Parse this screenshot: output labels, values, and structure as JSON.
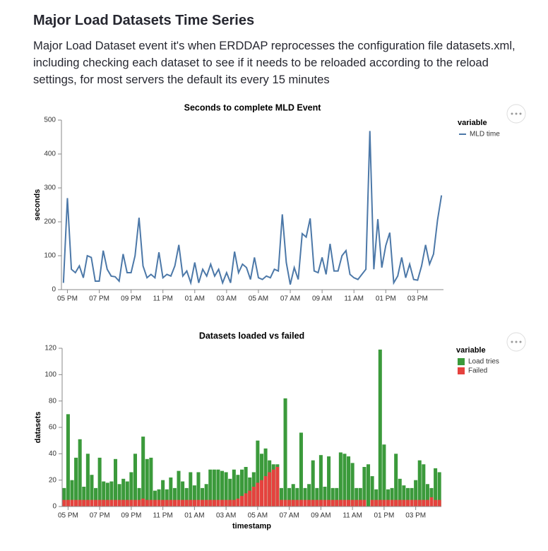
{
  "header": {
    "title": "Major Load Datasets Time Series",
    "description": "Major Load Dataset event it's when ERDDAP reprocesses the configuration file datasets.xml, including checking each dataset to see if it needs to be reloaded according to the reload settings, for most servers the default its every 15 minutes"
  },
  "chart_data": [
    {
      "type": "line",
      "title": "Seconds to complete MLD Event",
      "y_label": "seconds",
      "legend_title": "variable",
      "legend": "right",
      "categories": [
        null,
        "05 PM",
        null,
        null,
        null,
        null,
        null,
        null,
        null,
        "07 PM",
        null,
        null,
        null,
        null,
        null,
        null,
        null,
        "09 PM",
        null,
        null,
        null,
        null,
        null,
        null,
        null,
        "11 PM",
        null,
        null,
        null,
        null,
        null,
        null,
        null,
        "01 AM",
        null,
        null,
        null,
        null,
        null,
        null,
        null,
        "03 AM",
        null,
        null,
        null,
        null,
        null,
        null,
        null,
        "05 AM",
        null,
        null,
        null,
        null,
        null,
        null,
        null,
        "07 AM",
        null,
        null,
        null,
        null,
        null,
        null,
        null,
        "09 AM",
        null,
        null,
        null,
        null,
        null,
        null,
        null,
        "11 AM",
        null,
        null,
        null,
        null,
        null,
        null,
        null,
        "01 PM",
        null,
        null,
        null,
        null,
        null,
        null,
        null,
        "03 PM",
        null,
        null,
        null,
        null,
        null,
        null
      ],
      "series": [
        {
          "name": "MLD time",
          "color": "#4c78a8",
          "values": [
            20,
            270,
            60,
            50,
            70,
            35,
            100,
            95,
            25,
            25,
            115,
            60,
            40,
            38,
            25,
            105,
            50,
            50,
            100,
            212,
            70,
            35,
            45,
            35,
            110,
            35,
            45,
            40,
            70,
            132,
            40,
            55,
            20,
            80,
            20,
            60,
            40,
            75,
            40,
            60,
            20,
            50,
            20,
            112,
            50,
            75,
            65,
            30,
            95,
            35,
            30,
            40,
            35,
            60,
            55,
            222,
            80,
            15,
            65,
            30,
            165,
            155,
            210,
            55,
            50,
            95,
            45,
            135,
            55,
            55,
            100,
            115,
            45,
            35,
            30,
            45,
            60,
            468,
            60,
            208,
            65,
            130,
            168,
            20,
            40,
            95,
            35,
            75,
            30,
            28,
            70,
            132,
            75,
            105,
            205,
            278
          ]
        }
      ],
      "ylim": [
        0,
        500
      ],
      "yticks": [
        0,
        100,
        200,
        300,
        400,
        500
      ]
    },
    {
      "type": "bar",
      "title": "Datasets loaded vs failed",
      "x_label": "timestamp",
      "y_label": "datasets",
      "legend_title": "variable",
      "legend": "right",
      "categories": [
        null,
        "05 PM",
        null,
        null,
        null,
        null,
        null,
        null,
        null,
        "07 PM",
        null,
        null,
        null,
        null,
        null,
        null,
        null,
        "09 PM",
        null,
        null,
        null,
        null,
        null,
        null,
        null,
        "11 PM",
        null,
        null,
        null,
        null,
        null,
        null,
        null,
        "01 AM",
        null,
        null,
        null,
        null,
        null,
        null,
        null,
        "03 AM",
        null,
        null,
        null,
        null,
        null,
        null,
        null,
        "05 AM",
        null,
        null,
        null,
        null,
        null,
        null,
        null,
        "07 AM",
        null,
        null,
        null,
        null,
        null,
        null,
        null,
        "09 AM",
        null,
        null,
        null,
        null,
        null,
        null,
        null,
        "11 AM",
        null,
        null,
        null,
        null,
        null,
        null,
        null,
        "01 PM",
        null,
        null,
        null,
        null,
        null,
        null,
        null,
        "03 PM",
        null,
        null,
        null,
        null,
        null,
        null
      ],
      "series": [
        {
          "name": "Load tries",
          "color": "#3b9a3b",
          "values": [
            14,
            70,
            20,
            37,
            51,
            15,
            40,
            24,
            14,
            37,
            19,
            18,
            19,
            36,
            17,
            21,
            19,
            26,
            40,
            14,
            53,
            36,
            37,
            12,
            13,
            20,
            13,
            22,
            14,
            27,
            19,
            14,
            26,
            16,
            26,
            14,
            17,
            28,
            28,
            28,
            27,
            26,
            21,
            28,
            24,
            28,
            30,
            22,
            26,
            50,
            40,
            44,
            35,
            32,
            32,
            14,
            82,
            14,
            17,
            14,
            56,
            14,
            17,
            35,
            14,
            39,
            15,
            38,
            14,
            14,
            41,
            40,
            38,
            33,
            14,
            14,
            30,
            32,
            23,
            13,
            119,
            47,
            13,
            14,
            40,
            21,
            16,
            14,
            14,
            20,
            35,
            32,
            17,
            14,
            29,
            26
          ]
        },
        {
          "name": "Failed",
          "color": "#e5423e",
          "values": [
            5,
            5,
            5,
            5,
            5,
            5,
            5,
            5,
            5,
            5,
            5,
            5,
            5,
            5,
            5,
            5,
            5,
            5,
            5,
            5,
            6,
            5,
            5,
            5,
            5,
            5,
            5,
            5,
            5,
            5,
            5,
            5,
            5,
            5,
            5,
            5,
            5,
            5,
            5,
            5,
            5,
            5,
            5,
            5,
            6,
            8,
            10,
            12,
            15,
            18,
            20,
            23,
            26,
            28,
            30,
            5,
            5,
            5,
            5,
            5,
            5,
            5,
            5,
            5,
            5,
            5,
            5,
            5,
            5,
            5,
            5,
            5,
            5,
            5,
            5,
            5,
            5,
            0,
            5,
            5,
            5,
            5,
            5,
            5,
            5,
            5,
            5,
            5,
            5,
            5,
            5,
            5,
            5,
            7,
            5,
            5
          ]
        }
      ],
      "ylim": [
        0,
        120
      ],
      "yticks": [
        0,
        20,
        40,
        60,
        80,
        100,
        120
      ]
    }
  ]
}
